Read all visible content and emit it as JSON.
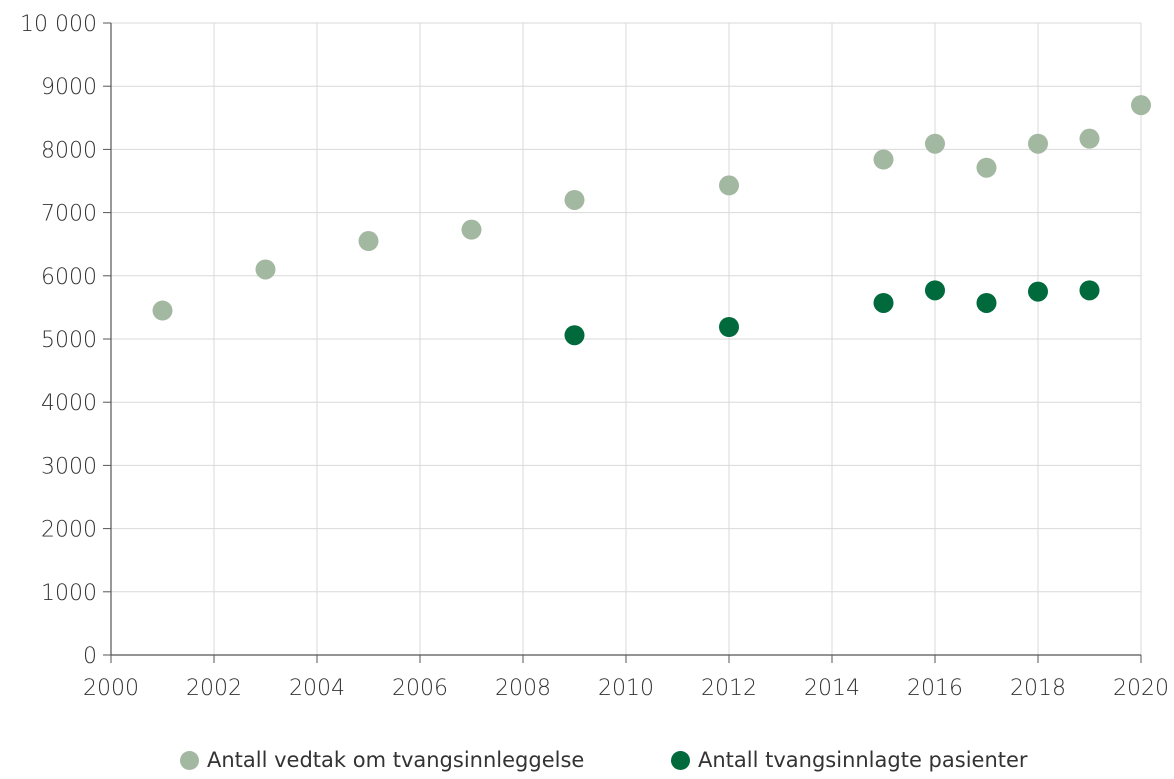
{
  "chart_data": {
    "type": "scatter",
    "xlim": [
      2000,
      2020
    ],
    "ylim": [
      0,
      10000
    ],
    "x_ticks": [
      2000,
      2002,
      2004,
      2006,
      2008,
      2010,
      2012,
      2014,
      2016,
      2018,
      2020
    ],
    "x_tick_labels": [
      "2000",
      "2002",
      "2004",
      "2006",
      "2008",
      "2010",
      "2012",
      "2014",
      "2016",
      "2018",
      "2020"
    ],
    "y_ticks": [
      0,
      1000,
      2000,
      3000,
      4000,
      5000,
      6000,
      7000,
      8000,
      9000,
      10000
    ],
    "y_tick_labels": [
      "0",
      "1000",
      "2000",
      "3000",
      "4000",
      "5000",
      "6000",
      "7000",
      "8000",
      "9000",
      "10 000"
    ],
    "grid": true,
    "legend_position": "bottom",
    "series": [
      {
        "name": "Antall vedtak om tvangsinnleggelse",
        "color": "#a3b8a1",
        "points": [
          {
            "x": 2001,
            "y": 5450
          },
          {
            "x": 2003,
            "y": 6100
          },
          {
            "x": 2005,
            "y": 6550
          },
          {
            "x": 2007,
            "y": 6730
          },
          {
            "x": 2009,
            "y": 7200
          },
          {
            "x": 2012,
            "y": 7430
          },
          {
            "x": 2015,
            "y": 7840
          },
          {
            "x": 2016,
            "y": 8090
          },
          {
            "x": 2017,
            "y": 7710
          },
          {
            "x": 2018,
            "y": 8090
          },
          {
            "x": 2019,
            "y": 8170
          },
          {
            "x": 2020,
            "y": 8700
          }
        ]
      },
      {
        "name": "Antall tvangsinnlagte pasienter",
        "color": "#006a3c",
        "points": [
          {
            "x": 2009,
            "y": 5060
          },
          {
            "x": 2012,
            "y": 5190
          },
          {
            "x": 2015,
            "y": 5570
          },
          {
            "x": 2016,
            "y": 5770
          },
          {
            "x": 2017,
            "y": 5570
          },
          {
            "x": 2018,
            "y": 5750
          },
          {
            "x": 2019,
            "y": 5770
          }
        ]
      }
    ]
  }
}
